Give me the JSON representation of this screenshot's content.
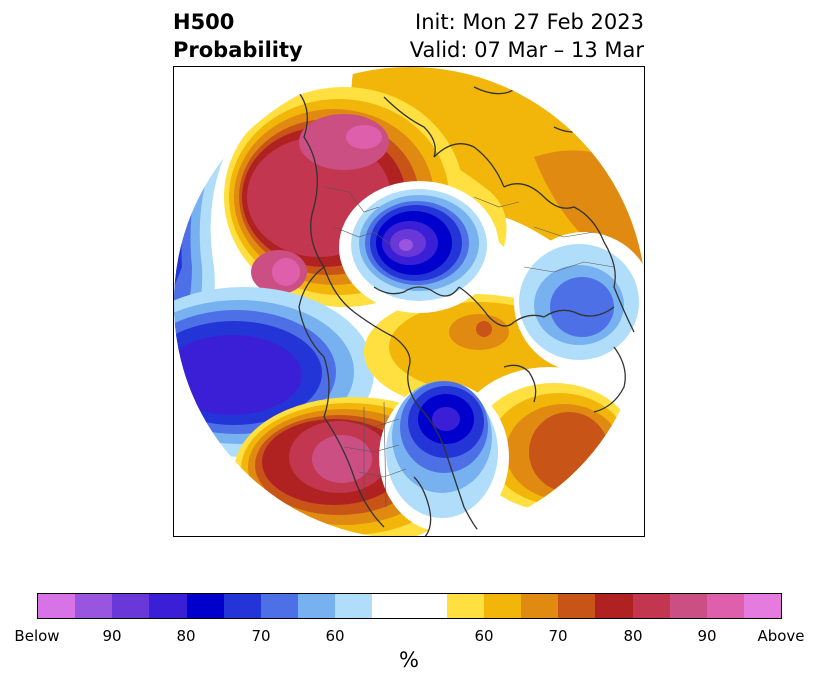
{
  "header": {
    "title_line1": "H500",
    "title_line2": "Probability",
    "init": "Init: Mon 27 Feb 2023",
    "valid": "Valid: 07 Mar – 13 Mar"
  },
  "map": {
    "projection": "north-polar-stereographic",
    "land_boundaries": "coastlines, country and state borders"
  },
  "colorbar": {
    "colors": [
      "#d773e6",
      "#9a55e0",
      "#6a38d9",
      "#3b1fd6",
      "#0000cc",
      "#2335d6",
      "#4d70e6",
      "#78b1f0",
      "#b0defa",
      "#ffffff",
      "#ffffff",
      "#ffe040",
      "#f2b60a",
      "#e08a12",
      "#c85418",
      "#b02222",
      "#c2364f",
      "#cc4f84",
      "#de60ad",
      "#e67bdf"
    ],
    "labels": [
      "Below",
      "90",
      "80",
      "70",
      "60",
      "60",
      "70",
      "80",
      "90",
      "Above"
    ],
    "title": "%"
  }
}
